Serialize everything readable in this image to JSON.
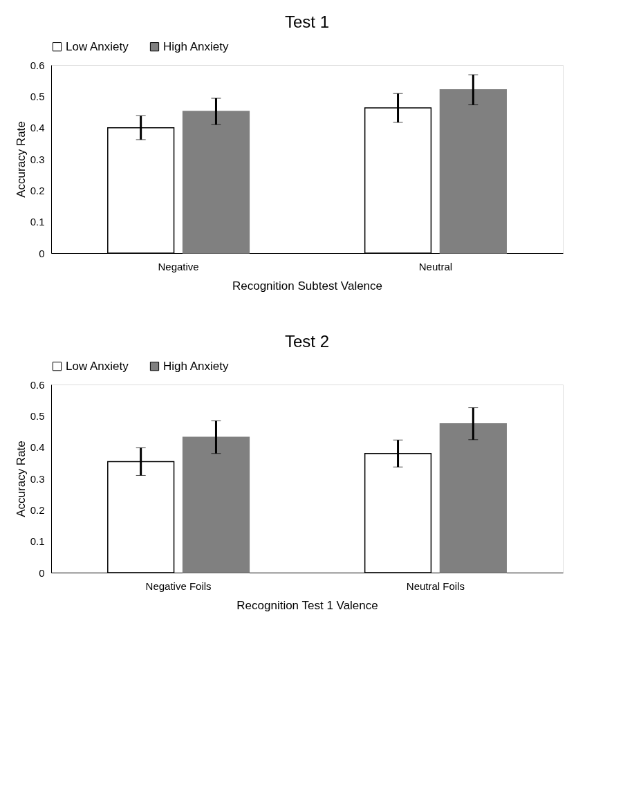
{
  "chart_data": [
    {
      "type": "bar",
      "title": "Test 1",
      "xlabel": "Recognition Subtest Valence",
      "ylabel": "Accuracy Rate",
      "categories": [
        "Negative",
        "Neutral"
      ],
      "series": [
        {
          "name": "Low Anxiety",
          "color": "#ffffff",
          "values": [
            0.4,
            0.463
          ],
          "errors": [
            0.038,
            0.046
          ]
        },
        {
          "name": "High Anxiety",
          "color": "#808080",
          "values": [
            0.452,
            0.521
          ],
          "errors": [
            0.042,
            0.048
          ]
        }
      ],
      "ylim": [
        0,
        0.6
      ],
      "yticks": [
        0,
        0.1,
        0.2,
        0.3,
        0.4,
        0.5,
        0.6
      ],
      "grid": false,
      "legend": "top"
    },
    {
      "type": "bar",
      "title": "Test 2",
      "xlabel": "Recognition Test 1 Valence",
      "ylabel": "Accuracy Rate",
      "categories": [
        "Negative Foils",
        "Neutral Foils"
      ],
      "series": [
        {
          "name": "Low Anxiety",
          "color": "#ffffff",
          "values": [
            0.354,
            0.38
          ],
          "errors": [
            0.044,
            0.043
          ]
        },
        {
          "name": "High Anxiety",
          "color": "#808080",
          "values": [
            0.432,
            0.475
          ],
          "errors": [
            0.052,
            0.051
          ]
        }
      ],
      "ylim": [
        0,
        0.6
      ],
      "yticks": [
        0,
        0.1,
        0.2,
        0.3,
        0.4,
        0.5,
        0.6
      ],
      "grid": false,
      "legend": "top"
    }
  ]
}
